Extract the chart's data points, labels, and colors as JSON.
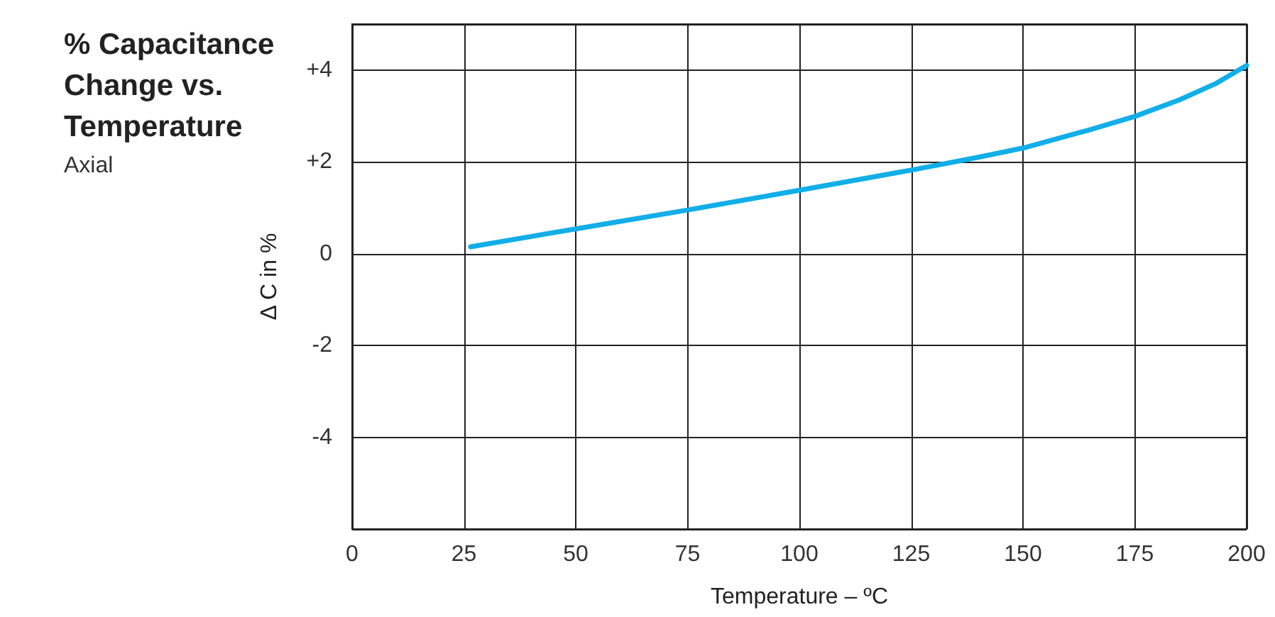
{
  "chart_data": {
    "type": "line",
    "title": "% Capacitance\nChange vs.\nTemperature",
    "subtitle": "Axial",
    "xlabel": "Temperature – ºC",
    "ylabel": "Δ C in %",
    "x": [
      26.5,
      50,
      75,
      100,
      125,
      140,
      150,
      165,
      175,
      185,
      193,
      200
    ],
    "series": [
      {
        "color": "#12aee8",
        "values": [
          0.15,
          0.54,
          0.95,
          1.38,
          1.82,
          2.1,
          2.3,
          2.7,
          2.99,
          3.35,
          3.7,
          4.1
        ]
      }
    ],
    "xlim": [
      0,
      200
    ],
    "xticks": [
      0,
      25,
      50,
      75,
      100,
      125,
      150,
      175,
      200
    ],
    "ylim": [
      -6,
      5
    ],
    "yticks": [
      {
        "value": -4,
        "label": "-4"
      },
      {
        "value": -2,
        "label": "-2"
      },
      {
        "value": 0,
        "label": "0"
      },
      {
        "value": 2,
        "label": "+2"
      },
      {
        "value": 4,
        "label": "+4"
      }
    ],
    "grid": true,
    "marker": "none",
    "line_style": "solid"
  }
}
